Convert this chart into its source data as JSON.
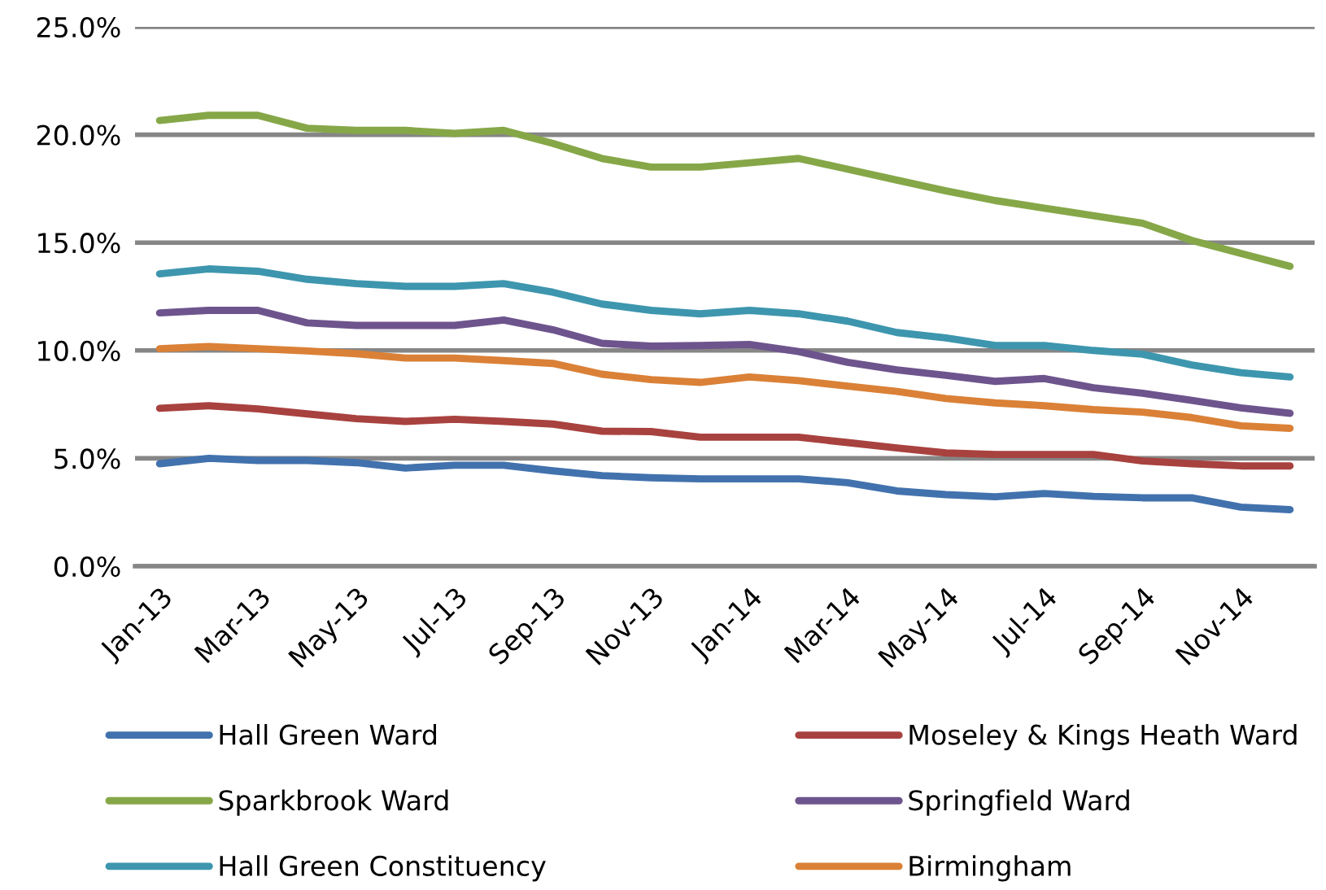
{
  "chart_data": {
    "type": "line",
    "categories": [
      "Jan-13",
      null,
      "Mar-13",
      null,
      "May-13",
      null,
      "Jul-13",
      null,
      "Sep-13",
      null,
      "Nov-13",
      null,
      "Jan-14",
      null,
      "Mar-14",
      null,
      "May-14",
      null,
      "Jul-14",
      null,
      "Sep-14",
      null,
      "Nov-14",
      null
    ],
    "series": [
      {
        "name": "Hall Green Ward",
        "color": "#4272ad",
        "values": [
          4.75,
          5.0,
          4.9,
          4.9,
          4.8,
          4.55,
          4.68,
          4.68,
          4.42,
          4.2,
          4.1,
          4.05,
          4.05,
          4.05,
          3.87,
          3.49,
          3.32,
          3.22,
          3.37,
          3.24,
          3.17,
          3.17,
          2.74,
          2.62
        ]
      },
      {
        "name": "Moseley & Kings Heath Ward",
        "color": "#a8423f",
        "values": [
          7.32,
          7.44,
          7.29,
          7.06,
          6.84,
          6.71,
          6.81,
          6.71,
          6.59,
          6.26,
          6.24,
          5.98,
          5.98,
          5.98,
          5.73,
          5.48,
          5.25,
          5.18,
          5.18,
          5.18,
          4.88,
          4.75,
          4.65,
          4.65
        ]
      },
      {
        "name": "Sparkbrook Ward",
        "color": "#86a748",
        "values": [
          20.66,
          20.9,
          20.9,
          20.3,
          20.2,
          20.2,
          20.06,
          20.2,
          19.6,
          18.9,
          18.5,
          18.5,
          18.7,
          18.9,
          18.4,
          17.9,
          17.4,
          16.95,
          16.6,
          16.25,
          15.9,
          15.1,
          14.5,
          13.9
        ]
      },
      {
        "name": "Springfield Ward",
        "color": "#6e548d",
        "values": [
          11.74,
          11.86,
          11.86,
          11.28,
          11.16,
          11.16,
          11.16,
          11.41,
          10.96,
          10.33,
          10.2,
          10.23,
          10.28,
          9.95,
          9.45,
          9.1,
          8.85,
          8.57,
          8.7,
          8.27,
          8.02,
          7.69,
          7.34,
          7.09
        ]
      },
      {
        "name": "Hall Green Constituency",
        "color": "#3d96ae",
        "values": [
          13.55,
          13.78,
          13.67,
          13.3,
          13.1,
          12.97,
          12.97,
          13.1,
          12.7,
          12.15,
          11.86,
          11.7,
          11.86,
          11.7,
          11.36,
          10.83,
          10.58,
          10.23,
          10.23,
          10.0,
          9.83,
          9.33,
          8.97,
          8.77
        ]
      },
      {
        "name": "Birmingham",
        "color": "#da8137",
        "values": [
          10.08,
          10.18,
          10.08,
          9.98,
          9.85,
          9.65,
          9.65,
          9.53,
          9.4,
          8.9,
          8.65,
          8.52,
          8.77,
          8.6,
          8.35,
          8.1,
          7.77,
          7.57,
          7.44,
          7.26,
          7.14,
          6.89,
          6.51,
          6.39
        ]
      }
    ],
    "ylim": [
      0,
      25
    ],
    "yticks": [
      {
        "value": 0,
        "label": "0.0%"
      },
      {
        "value": 5,
        "label": "5.0%"
      },
      {
        "value": 10,
        "label": "10.0%"
      },
      {
        "value": 15,
        "label": "15.0%"
      },
      {
        "value": 20,
        "label": "20.0%"
      },
      {
        "value": 25,
        "label": "25.0%"
      }
    ],
    "grid": "y",
    "legend": "bottom",
    "marker": "none",
    "line_style": "solid"
  }
}
